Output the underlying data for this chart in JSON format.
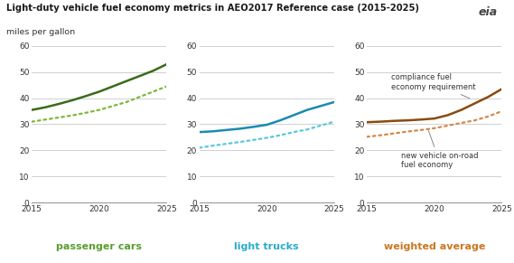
{
  "title": "Light-duty vehicle fuel economy metrics in AEO2017 Reference case (2015-2025)",
  "subtitle": "miles per gallon",
  "years": [
    2015,
    2016,
    2017,
    2018,
    2019,
    2020,
    2021,
    2022,
    2023,
    2024,
    2025
  ],
  "panels": [
    {
      "label": "passenger cars",
      "label_color": "#5a9e2f",
      "solid_color": "#3a6b1a",
      "dotted_color": "#7ab83a",
      "solid": [
        35.5,
        36.5,
        37.8,
        39.2,
        40.8,
        42.5,
        44.5,
        46.5,
        48.5,
        50.5,
        53.0
      ],
      "dotted": [
        31.0,
        31.8,
        32.6,
        33.4,
        34.4,
        35.5,
        37.0,
        38.5,
        40.5,
        42.5,
        44.5
      ]
    },
    {
      "label": "light trucks",
      "label_color": "#2aaccc",
      "solid_color": "#1a8ab0",
      "dotted_color": "#55c8e0",
      "solid": [
        27.0,
        27.3,
        27.8,
        28.3,
        29.0,
        29.8,
        31.5,
        33.5,
        35.5,
        37.0,
        38.5
      ],
      "dotted": [
        21.0,
        21.8,
        22.5,
        23.2,
        24.0,
        24.8,
        25.8,
        27.0,
        28.0,
        29.5,
        31.0
      ]
    },
    {
      "label": "weighted average",
      "label_color": "#cc7722",
      "solid_color": "#8b4a10",
      "dotted_color": "#d4884a",
      "solid": [
        30.8,
        31.0,
        31.3,
        31.5,
        31.8,
        32.2,
        33.5,
        35.5,
        38.0,
        40.5,
        43.5
      ],
      "dotted": [
        25.2,
        25.8,
        26.5,
        27.2,
        27.8,
        28.5,
        29.5,
        30.5,
        31.5,
        33.0,
        35.0
      ],
      "annotation1": "compliance fuel\neconomy requirement",
      "annotation2": "new vehicle on-road\nfuel economy"
    }
  ],
  "ylim": [
    0,
    60
  ],
  "yticks": [
    0,
    10,
    20,
    30,
    40,
    50,
    60
  ],
  "xlim": [
    2015,
    2025
  ],
  "xticks": [
    2015,
    2020,
    2025
  ],
  "bg_color": "#ffffff",
  "grid_color": "#d0d0d0"
}
